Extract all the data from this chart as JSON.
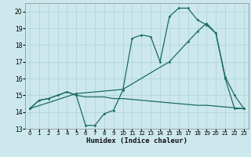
{
  "xlabel": "Humidex (Indice chaleur)",
  "xlim": [
    -0.5,
    23.5
  ],
  "ylim": [
    13,
    20.5
  ],
  "yticks": [
    13,
    14,
    15,
    16,
    17,
    18,
    19,
    20
  ],
  "xticks": [
    0,
    1,
    2,
    3,
    4,
    5,
    6,
    7,
    8,
    9,
    10,
    11,
    12,
    13,
    14,
    15,
    16,
    17,
    18,
    19,
    20,
    21,
    22,
    23
  ],
  "bg_color": "#cce8ed",
  "line_color": "#1a6b63",
  "grid_color": "#b0d5db",
  "line1_x": [
    0,
    1,
    2,
    3,
    4,
    5,
    6,
    7,
    8,
    9,
    10,
    11,
    12,
    13,
    14,
    15,
    16,
    17,
    18,
    19,
    20,
    21,
    22,
    23
  ],
  "line1_y": [
    14.2,
    14.7,
    14.8,
    15.0,
    15.2,
    15.0,
    13.2,
    13.2,
    13.9,
    14.1,
    15.3,
    18.4,
    18.6,
    18.5,
    17.0,
    19.7,
    20.2,
    20.2,
    19.5,
    19.2,
    18.7,
    16.1,
    15.0,
    14.2
  ],
  "line2_x": [
    0,
    5,
    10,
    15,
    17,
    18,
    19,
    20,
    21,
    22,
    23
  ],
  "line2_y": [
    14.2,
    15.1,
    15.35,
    17.0,
    18.2,
    18.8,
    19.3,
    18.7,
    16.0,
    14.2,
    14.2
  ],
  "line3_x": [
    0,
    1,
    2,
    3,
    4,
    5,
    6,
    7,
    8,
    9,
    10,
    11,
    12,
    13,
    14,
    15,
    16,
    17,
    18,
    19,
    20,
    21,
    22,
    23
  ],
  "line3_y": [
    14.2,
    14.7,
    14.8,
    15.0,
    15.2,
    15.0,
    14.9,
    14.9,
    14.9,
    14.8,
    14.8,
    14.75,
    14.7,
    14.65,
    14.6,
    14.55,
    14.5,
    14.45,
    14.4,
    14.4,
    14.35,
    14.3,
    14.25,
    14.2
  ]
}
